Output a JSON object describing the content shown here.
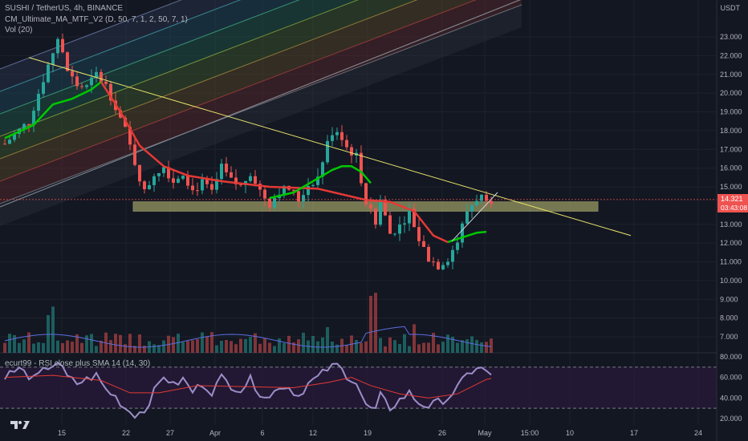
{
  "header": {
    "symbol_line": "SUSHI / TetherUS, 4h, BINANCE",
    "ma_indicator": "CM_Ultimate_MA_MTF_V2 (D, 50, 7, 1, 2, 50, 7, 1)",
    "vol_indicator": "Vol (20)",
    "rsi_indicator": "ecurt99 - RSI close plus SMA 14 (14, 30)",
    "currency": "USDT"
  },
  "price_tag": {
    "price": "14.321",
    "countdown": "03:43:08"
  },
  "colors": {
    "up": "#26a69a",
    "down": "#ef5350",
    "ma_fast": "#00c800",
    "ma_slow": "#e53935",
    "trendline": "#e8e36a",
    "zone": "#c8c87a",
    "rsi_line": "#9c8ec9",
    "rsi_sma": "#e53935"
  },
  "chart_data": [
    {
      "type": "candlestick",
      "x_ticks": [
        "15",
        "22",
        "27",
        "Apr",
        "6",
        "12",
        "19",
        "26",
        "May",
        "15:00",
        "10",
        "17",
        "24"
      ],
      "y_ticks": [
        "23.000",
        "22.000",
        "21.000",
        "20.000",
        "19.000",
        "18.000",
        "17.000",
        "16.000",
        "15.000",
        "13.000",
        "12.000",
        "11.000",
        "10.000",
        "9.000",
        "8.000",
        "7.000"
      ],
      "ylim": [
        6.5,
        24
      ],
      "last_price": 14.321,
      "close_path": [
        [
          0,
          17.3
        ],
        [
          5,
          18.5
        ],
        [
          9,
          21.5
        ],
        [
          11,
          22.9
        ],
        [
          13,
          21.2
        ],
        [
          15,
          20.4
        ],
        [
          17,
          20.3
        ],
        [
          19,
          21
        ],
        [
          21,
          20.4
        ],
        [
          23,
          19.3
        ],
        [
          25,
          18
        ],
        [
          27,
          16.3
        ],
        [
          29,
          14.7
        ],
        [
          31,
          15.7
        ],
        [
          33,
          16.1
        ],
        [
          35,
          15.3
        ],
        [
          37,
          15.8
        ],
        [
          39,
          14.8
        ],
        [
          41,
          15.2
        ],
        [
          43,
          14.7
        ],
        [
          45,
          16
        ],
        [
          47,
          15.3
        ],
        [
          49,
          15
        ],
        [
          51,
          15.8
        ],
        [
          53,
          14.8
        ],
        [
          55,
          14.1
        ],
        [
          57,
          14.8
        ],
        [
          59,
          14.9
        ],
        [
          61,
          14.3
        ],
        [
          63,
          15.1
        ],
        [
          65,
          15.5
        ],
        [
          67,
          17.3
        ],
        [
          69,
          18
        ],
        [
          71,
          17.1
        ],
        [
          73,
          16.6
        ],
        [
          75,
          14.2
        ],
        [
          77,
          13
        ],
        [
          78,
          14.3
        ],
        [
          80,
          12.5
        ],
        [
          82,
          12.9
        ],
        [
          84,
          13.7
        ],
        [
          86,
          12.2
        ],
        [
          88,
          11.2
        ],
        [
          90,
          10.8
        ],
        [
          92,
          11.2
        ],
        [
          94,
          12.1
        ],
        [
          96,
          13.7
        ],
        [
          98,
          14.4
        ],
        [
          100,
          14.5
        ],
        [
          101,
          14.32
        ]
      ],
      "ma_green": [
        [
          0,
          17.6
        ],
        [
          6,
          18.3
        ],
        [
          10,
          19.4
        ],
        [
          14,
          19.7
        ],
        [
          18,
          20.2
        ],
        [
          20,
          20.6
        ]
      ],
      "ma_red": [
        [
          20,
          20.6
        ],
        [
          24,
          19
        ],
        [
          28,
          17.2
        ],
        [
          33,
          16.1
        ],
        [
          38,
          15.6
        ],
        [
          45,
          15.3
        ],
        [
          55,
          15
        ],
        [
          65,
          14.9
        ],
        [
          75,
          14.3
        ],
        [
          80,
          14.2
        ],
        [
          85,
          13.7
        ],
        [
          89,
          12.4
        ],
        [
          92,
          12.05
        ]
      ],
      "ma_green_2": [
        [
          55,
          14.4
        ],
        [
          60,
          14.7
        ],
        [
          64,
          15.3
        ],
        [
          68,
          15.9
        ],
        [
          70,
          16.1
        ],
        [
          72,
          16.1
        ],
        [
          74,
          15.8
        ],
        [
          76,
          15.2
        ]
      ],
      "ma_green_3": [
        [
          92,
          12.05
        ],
        [
          95,
          12.3
        ],
        [
          98,
          12.55
        ],
        [
          100,
          12.6
        ]
      ],
      "trendline": [
        [
          5,
          21.9
        ],
        [
          130,
          12.4
        ]
      ],
      "support_zone": [
        13.7,
        14.2
      ],
      "volume_ylim": [
        6.5,
        10.7
      ]
    },
    {
      "type": "line",
      "x_ticks": [
        "15",
        "22",
        "27",
        "Apr",
        "6",
        "12",
        "19",
        "26",
        "May",
        "15:00",
        "10",
        "17",
        "24"
      ],
      "y_ticks": [
        "80.000",
        "60.000",
        "40.000",
        "20.000"
      ],
      "ylim": [
        15,
        80
      ],
      "upper_band": 70,
      "lower_band": 30,
      "rsi": [
        [
          0,
          62
        ],
        [
          3,
          68
        ],
        [
          6,
          58
        ],
        [
          9,
          70
        ],
        [
          11,
          75
        ],
        [
          13,
          60
        ],
        [
          15,
          54
        ],
        [
          17,
          58
        ],
        [
          19,
          62
        ],
        [
          21,
          48
        ],
        [
          23,
          41
        ],
        [
          25,
          30
        ],
        [
          27,
          24
        ],
        [
          29,
          28
        ],
        [
          31,
          46
        ],
        [
          33,
          62
        ],
        [
          35,
          52
        ],
        [
          37,
          58
        ],
        [
          39,
          46
        ],
        [
          41,
          54
        ],
        [
          43,
          46
        ],
        [
          45,
          60
        ],
        [
          47,
          52
        ],
        [
          49,
          48
        ],
        [
          51,
          58
        ],
        [
          53,
          45
        ],
        [
          55,
          40
        ],
        [
          57,
          52
        ],
        [
          59,
          50
        ],
        [
          61,
          42
        ],
        [
          63,
          54
        ],
        [
          65,
          60
        ],
        [
          67,
          68
        ],
        [
          69,
          72
        ],
        [
          71,
          62
        ],
        [
          73,
          55
        ],
        [
          75,
          32
        ],
        [
          77,
          28
        ],
        [
          78,
          42
        ],
        [
          80,
          30
        ],
        [
          82,
          38
        ],
        [
          84,
          45
        ],
        [
          86,
          35
        ],
        [
          88,
          32
        ],
        [
          90,
          36
        ],
        [
          92,
          40
        ],
        [
          94,
          50
        ],
        [
          96,
          62
        ],
        [
          98,
          70
        ],
        [
          100,
          66
        ],
        [
          101,
          60
        ]
      ],
      "sma": [
        [
          0,
          60
        ],
        [
          10,
          62
        ],
        [
          20,
          57
        ],
        [
          26,
          45
        ],
        [
          32,
          45
        ],
        [
          40,
          52
        ],
        [
          50,
          51
        ],
        [
          60,
          50
        ],
        [
          67,
          55
        ],
        [
          72,
          60
        ],
        [
          76,
          52
        ],
        [
          82,
          44
        ],
        [
          88,
          40
        ],
        [
          94,
          44
        ],
        [
          100,
          58
        ],
        [
          101,
          59
        ]
      ]
    }
  ]
}
